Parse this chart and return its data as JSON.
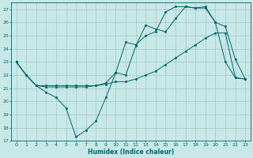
{
  "title": "",
  "xlabel": "Humidex (Indice chaleur)",
  "bg_color": "#c8e8e8",
  "line_color": "#006666",
  "grid_color": "#a0c8c8",
  "xlim": [
    -0.5,
    23.5
  ],
  "ylim": [
    17,
    27.5
  ],
  "xticks": [
    0,
    1,
    2,
    3,
    4,
    5,
    6,
    7,
    8,
    9,
    10,
    11,
    12,
    13,
    14,
    15,
    16,
    17,
    18,
    19,
    20,
    21,
    22,
    23
  ],
  "yticks": [
    17,
    18,
    19,
    20,
    21,
    22,
    23,
    24,
    25,
    26,
    27
  ],
  "line1_x": [
    0,
    1,
    2,
    3,
    4,
    5,
    6,
    7,
    8,
    9,
    10,
    11,
    12,
    13,
    14,
    15,
    16,
    17,
    18,
    19,
    20,
    21,
    22,
    23
  ],
  "line1_y": [
    23,
    22,
    21.2,
    20.7,
    20.3,
    19.5,
    17.3,
    17.8,
    18.5,
    20.3,
    22.2,
    22.0,
    24.2,
    25.8,
    25.5,
    25.3,
    26.3,
    27.2,
    27.1,
    27.1,
    26.0,
    25.7,
    23.2,
    21.7
  ],
  "line2_x": [
    0,
    1,
    2,
    3,
    4,
    5,
    6,
    7,
    8,
    9,
    10,
    11,
    12,
    13,
    14,
    15,
    16,
    17,
    18,
    19,
    20,
    21,
    22,
    23
  ],
  "line2_y": [
    23,
    22,
    21.2,
    21.1,
    21.1,
    21.1,
    21.1,
    21.1,
    21.2,
    21.3,
    21.5,
    21.5,
    21.7,
    22.0,
    22.3,
    22.8,
    23.3,
    23.8,
    24.3,
    24.8,
    25.2,
    25.2,
    21.8,
    21.7
  ],
  "line3_x": [
    0,
    1,
    2,
    3,
    4,
    5,
    6,
    7,
    8,
    9,
    10,
    11,
    12,
    13,
    14,
    15,
    16,
    17,
    18,
    19,
    20,
    21,
    22,
    23
  ],
  "line3_y": [
    23,
    22,
    21.2,
    21.2,
    21.2,
    21.2,
    21.2,
    21.2,
    21.2,
    21.4,
    22.2,
    24.5,
    24.3,
    25.0,
    25.3,
    26.8,
    27.2,
    27.2,
    27.1,
    27.2,
    26.0,
    23.0,
    21.8,
    21.7
  ]
}
